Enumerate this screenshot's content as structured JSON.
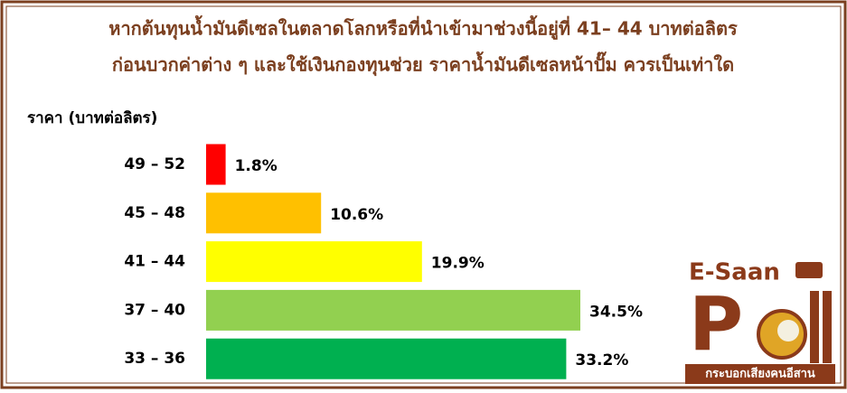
{
  "chart_data": {
    "type": "bar",
    "title": [
      "หากต้นทุนน้ำมันดีเซลในตลาดโลกหรือที่นำเข้ามาช่วงนี้อยู่ที่ 41– 44 บาทต่อลิตร",
      "ก่อนบวกค่าต่าง ๆ และใช้เงินกองทุนช่วย ราคาน้ำมันดีเซลหน้าปั๊ม ควรเป็นเท่าใด"
    ],
    "ylabel": "ราคา (บาทต่อลิตร)",
    "categories": [
      "49 – 52",
      "45 – 48",
      "41 – 44",
      "37 – 40",
      "33 – 36"
    ],
    "values": [
      1.8,
      10.6,
      19.9,
      34.5,
      33.2
    ],
    "value_labels": [
      "1.8%",
      "10.6%",
      "19.9%",
      "34.5%",
      "33.2%"
    ],
    "colors": [
      "#ff0000",
      "#ffc000",
      "#ffff00",
      "#92d050",
      "#00b050"
    ]
  },
  "logo": {
    "top": "E-Saan",
    "letter": "P",
    "caption": "กระบอกเสียงคนอีสาน"
  }
}
